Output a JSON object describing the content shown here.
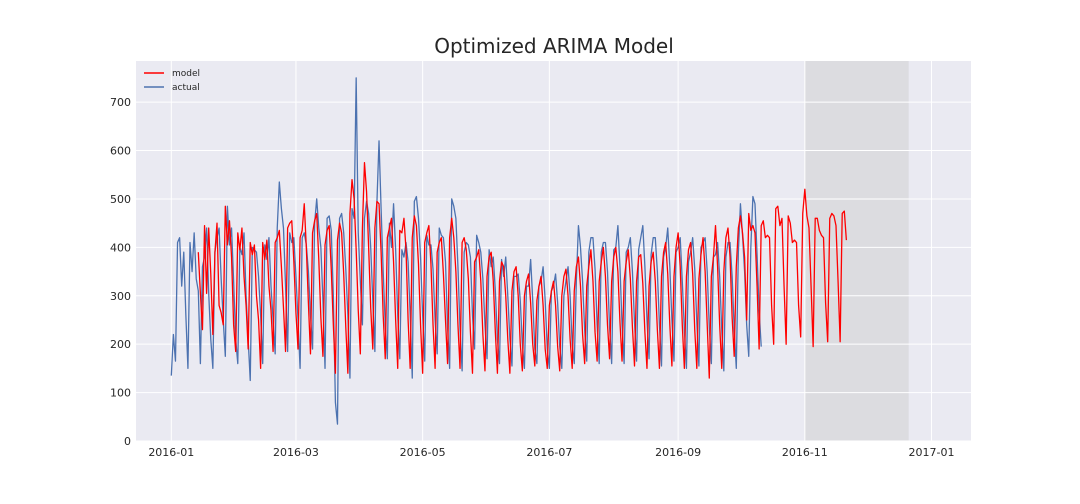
{
  "chart_data": {
    "type": "line",
    "title": "Optimized ARIMA Model",
    "xlabel": "",
    "ylabel": "",
    "x_range": [
      "2015-12-15",
      "2017-01-20"
    ],
    "ylim": [
      0,
      785
    ],
    "grid": true,
    "legend_placement": "top-left",
    "x_ticks": [
      "2016-01",
      "2016-03",
      "2016-05",
      "2016-07",
      "2016-09",
      "2016-11",
      "2017-01"
    ],
    "y_ticks": [
      0,
      100,
      200,
      300,
      400,
      500,
      600,
      700
    ],
    "forecast_region": [
      "2016-11-01",
      "2016-12-21"
    ],
    "colors": {
      "model": "#ff0000",
      "actual": "#4c72b0",
      "plot_background": "#eaeaf2",
      "grid": "#ffffff",
      "forecast_region": "#dcdce0"
    },
    "series": [
      {
        "name": "model",
        "x_start": "2016-01-14",
        "values": [
          390,
          305,
          230,
          445,
          305,
          440,
          345,
          220,
          390,
          450,
          280,
          265,
          240,
          485,
          405,
          455,
          380,
          240,
          185,
          430,
          395,
          440,
          340,
          280,
          190,
          410,
          385,
          405,
          300,
          250,
          150,
          410,
          375,
          415,
          320,
          270,
          185,
          410,
          420,
          435,
          360,
          275,
          185,
          440,
          450,
          455,
          370,
          265,
          190,
          420,
          435,
          490,
          400,
          285,
          180,
          430,
          455,
          470,
          375,
          255,
          175,
          405,
          435,
          445,
          355,
          240,
          140,
          415,
          450,
          430,
          345,
          235,
          140,
          470,
          540,
          500,
          395,
          270,
          180,
          440,
          575,
          515,
          400,
          275,
          190,
          440,
          495,
          490,
          390,
          260,
          170,
          420,
          440,
          460,
          370,
          250,
          150,
          435,
          430,
          460,
          395,
          250,
          150,
          420,
          465,
          445,
          365,
          240,
          140,
          410,
          430,
          445,
          365,
          240,
          150,
          390,
          410,
          420,
          345,
          250,
          160,
          420,
          460,
          420,
          350,
          240,
          150,
          410,
          420,
          395,
          335,
          225,
          140,
          370,
          380,
          395,
          330,
          220,
          145,
          340,
          380,
          390,
          330,
          225,
          140,
          330,
          370,
          360,
          300,
          210,
          140,
          310,
          350,
          360,
          300,
          200,
          145,
          300,
          330,
          345,
          285,
          200,
          155,
          290,
          320,
          340,
          280,
          190,
          150,
          280,
          310,
          330,
          280,
          195,
          145,
          300,
          340,
          355,
          300,
          210,
          150,
          310,
          360,
          380,
          320,
          220,
          160,
          320,
          360,
          395,
          330,
          225,
          165,
          330,
          370,
          400,
          340,
          240,
          170,
          330,
          380,
          400,
          350,
          245,
          165,
          330,
          370,
          395,
          335,
          235,
          155,
          330,
          380,
          385,
          325,
          225,
          150,
          320,
          370,
          390,
          330,
          230,
          150,
          340,
          390,
          410,
          345,
          240,
          155,
          340,
          400,
          430,
          360,
          240,
          150,
          340,
          395,
          410,
          345,
          230,
          150,
          335,
          385,
          420,
          350,
          240,
          130,
          340,
          380,
          445,
          360,
          240,
          150,
          350,
          420,
          440,
          380,
          255,
          175,
          360,
          440,
          465,
          430,
          380,
          250,
          470,
          435,
          445,
          430,
          320,
          190,
          445,
          455,
          420,
          425,
          420,
          280,
          200,
          480,
          485,
          445,
          460,
          320,
          200,
          465,
          450,
          410,
          415,
          410,
          280,
          215,
          470,
          520,
          465,
          440,
          320,
          195,
          460,
          460,
          435,
          425,
          420,
          285,
          205,
          460,
          470,
          465,
          445,
          330,
          205,
          470,
          475,
          415
        ]
      },
      {
        "name": "actual",
        "x_start": "2016-01-01",
        "values": [
          135,
          220,
          165,
          410,
          420,
          320,
          390,
          260,
          150,
          410,
          350,
          430,
          335,
          310,
          160,
          360,
          380,
          440,
          305,
          210,
          150,
          390,
          420,
          440,
          335,
          250,
          175,
          485,
          405,
          440,
          330,
          210,
          160,
          400,
          385,
          430,
          300,
          210,
          125,
          400,
          395,
          390,
          340,
          260,
          160,
          405,
          375,
          420,
          320,
          250,
          180,
          440,
          535,
          480,
          440,
          320,
          185,
          430,
          410,
          420,
          340,
          250,
          150,
          420,
          430,
          405,
          350,
          260,
          190,
          450,
          500,
          440,
          400,
          290,
          150,
          460,
          465,
          435,
          300,
          80,
          35,
          460,
          470,
          430,
          355,
          260,
          130,
          480,
          460,
          750,
          430,
          330,
          240,
          460,
          495,
          470,
          400,
          290,
          185,
          495,
          620,
          480,
          350,
          240,
          170,
          450,
          400,
          490,
          395,
          260,
          170,
          395,
          380,
          410,
          370,
          260,
          130,
          495,
          505,
          460,
          380,
          260,
          165,
          425,
          405,
          405,
          355,
          250,
          180,
          440,
          425,
          420,
          370,
          235,
          150,
          500,
          485,
          460,
          360,
          230,
          145,
          390,
          410,
          405,
          380,
          260,
          190,
          425,
          410,
          390,
          335,
          240,
          170,
          395,
          360,
          380,
          310,
          210,
          160,
          375,
          340,
          380,
          300,
          210,
          155,
          340,
          340,
          345,
          290,
          200,
          150,
          320,
          320,
          375,
          290,
          190,
          160,
          320,
          330,
          360,
          290,
          190,
          150,
          310,
          320,
          345,
          285,
          195,
          150,
          300,
          330,
          360,
          300,
          200,
          160,
          330,
          445,
          400,
          330,
          230,
          165,
          390,
          420,
          420,
          355,
          240,
          160,
          390,
          410,
          410,
          350,
          235,
          160,
          395,
          400,
          445,
          360,
          240,
          160,
          390,
          400,
          420,
          350,
          245,
          165,
          395,
          420,
          445,
          360,
          250,
          170,
          385,
          420,
          420,
          350,
          240,
          155,
          380,
          400,
          440,
          360,
          250,
          165,
          390,
          400,
          420,
          330,
          230,
          150,
          370,
          390,
          420,
          355,
          245,
          155,
          400,
          410,
          420,
          350,
          235,
          160,
          380,
          385,
          410,
          340,
          230,
          145,
          380,
          410,
          410,
          340,
          230,
          150,
          390,
          490,
          425,
          350,
          240,
          175,
          400,
          505,
          490,
          385,
          270,
          195
        ]
      }
    ]
  }
}
